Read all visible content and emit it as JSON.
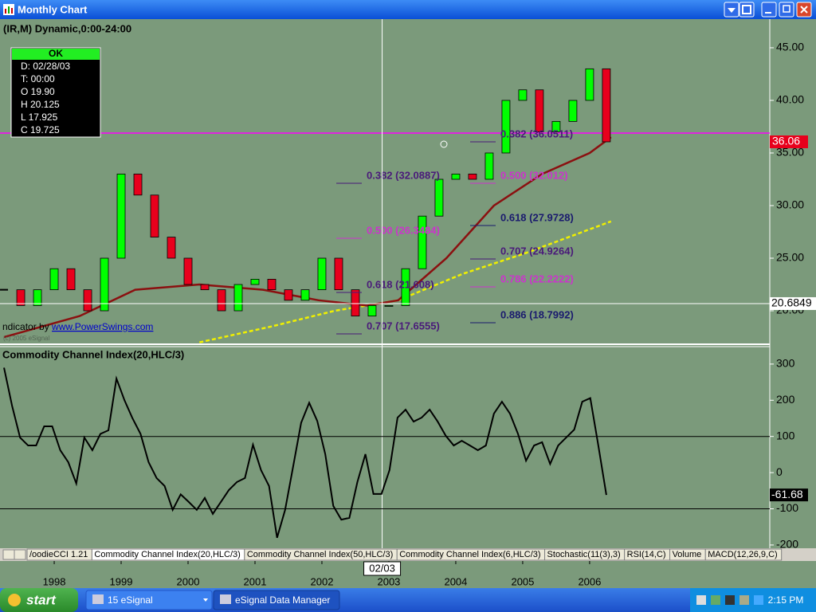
{
  "window": {
    "title": "Monthly Chart"
  },
  "symbol_line": "(IR,M) Dynamic,0:00-24:00",
  "info_box": {
    "status": "OK",
    "lines": [
      "D: 02/28/03",
      "T: 00:00",
      "O 19.90",
      "H 20.125",
      "L 17.925",
      "C 19.725"
    ]
  },
  "credit": {
    "prefix": "ndicator by ",
    "link": "www.PowerSwings.com",
    "watermark": "(c) 2005 eSignal"
  },
  "price_panel": {
    "xlim": [
      1997.19,
      2008.68
    ],
    "ylim": [
      16.82,
      47.42
    ],
    "yticks": [
      {
        "value": 45,
        "label": "45.00"
      },
      {
        "value": 40,
        "label": "40.00"
      },
      {
        "value": 35,
        "label": "35.00"
      },
      {
        "value": 30,
        "label": "30.00"
      },
      {
        "value": 25,
        "label": "25.00"
      },
      {
        "value": 20,
        "label": "20.00"
      }
    ],
    "x": [
      1997.25,
      1997.5,
      1997.75,
      1998,
      1998.25,
      1998.5,
      1998.75,
      1999,
      1999.25,
      1999.5,
      1999.75,
      2000,
      2000.25,
      2000.5,
      2000.75,
      2001,
      2001.25,
      2001.5,
      2001.75,
      2002,
      2002.25,
      2002.5,
      2002.75,
      2003,
      2003.25,
      2003.5,
      2003.75,
      2004,
      2004.25,
      2004.5,
      2004.75,
      2005,
      2005.25,
      2005.5,
      2005.75,
      2006,
      2006.25
    ],
    "closes": [
      22,
      20.5,
      22,
      24,
      22,
      20,
      25,
      33,
      31,
      27,
      25,
      22.5,
      22,
      20,
      22.5,
      23,
      22,
      21,
      22,
      25,
      22,
      19.5,
      20.5,
      20.5,
      24,
      29,
      32.5,
      33,
      32.5,
      35,
      40,
      41,
      37,
      38,
      40,
      43,
      36.06
    ],
    "up_color": "#00ff00",
    "down_color": "#e8001c",
    "moving_average": {
      "color": "#8b1010",
      "x": [
        1997.25,
        1998.38,
        1999.21,
        2000.17,
        2001.12,
        2001.95,
        2002.67,
        2003.14,
        2003.86,
        2004.57,
        2005.29,
        2006.0,
        2006.32
      ],
      "values": [
        17.5,
        19.5,
        22,
        22.5,
        22,
        21,
        20.5,
        21,
        25,
        30,
        33,
        35,
        36.5
      ]
    },
    "trend_line": {
      "color": "#f0f000",
      "x": [
        2000.17,
        2001.24,
        2002.19,
        2003.14,
        2004.1,
        2005.05,
        2006.32
      ],
      "values": [
        17,
        18.5,
        20,
        21,
        23.5,
        25.5,
        28.5
      ]
    },
    "level_line": {
      "value": 36.89,
      "color": "#ff00ff"
    },
    "crosshair": {
      "x": 2002.9,
      "price": 20.6849,
      "date_label": "02/03"
    },
    "fib_levels": [
      {
        "label": "0.382 (32.0887)",
        "color": "#4a1a7a"
      },
      {
        "label": "0.500 (26.3484)",
        "color": "#cc33cc"
      },
      {
        "label": "0.618 (21.608)",
        "color": "#4a1a7a"
      },
      {
        "label": "0.707 (17.6555)",
        "color": "#4a1a7a"
      },
      {
        "label": "0.382 (36.0511)",
        "color": "#4a1a7a"
      },
      {
        "label": "0.500 (32.012)",
        "color": "#cc33cc"
      },
      {
        "label": "0.618 (27.9728)",
        "color": "#1a1a6e"
      },
      {
        "label": "0.707 (24.9264)",
        "color": "#4a1a7a"
      },
      {
        "label": "0.786 (22.2222)",
        "color": "#cc33cc"
      },
      {
        "label": "0.886 (18.7992)",
        "color": "#1a1a6e"
      }
    ]
  },
  "cci_panel": {
    "title": "Commodity Channel Index(20,HLC/3)",
    "ylim": [
      -209,
      346
    ],
    "yticks": [
      300,
      200,
      100,
      0,
      -100,
      -200
    ],
    "guide_levels": [
      100,
      -100
    ],
    "color": "#000000",
    "x": [
      1997.25,
      1997.37,
      1997.49,
      1997.61,
      1997.73,
      1997.85,
      1997.97,
      1998.09,
      1998.21,
      1998.33,
      1998.45,
      1998.57,
      1998.69,
      1998.81,
      1998.93,
      1999.05,
      1999.17,
      1999.29,
      1999.41,
      1999.53,
      1999.65,
      1999.77,
      1999.89,
      2000.01,
      2000.13,
      2000.25,
      2000.37,
      2000.49,
      2000.61,
      2000.73,
      2000.85,
      2000.97,
      2001.09,
      2001.21,
      2001.33,
      2001.45,
      2001.57,
      2001.69,
      2001.81,
      2001.93,
      2002.05,
      2002.17,
      2002.29,
      2002.41,
      2002.53,
      2002.65,
      2002.77,
      2002.89,
      2003.01,
      2003.13,
      2003.25,
      2003.37,
      2003.49,
      2003.61,
      2003.73,
      2003.85,
      2003.97,
      2004.09,
      2004.21,
      2004.33,
      2004.45,
      2004.57,
      2004.69,
      2004.81,
      2004.93,
      2005.05,
      2005.17,
      2005.29,
      2005.41,
      2005.53,
      2005.65,
      2005.77,
      2005.89,
      2006.01,
      2006.13,
      2006.25
    ],
    "values": [
      290,
      185,
      97,
      75,
      75,
      128,
      128,
      62,
      29,
      -30,
      97,
      62,
      107,
      117,
      260,
      200,
      150,
      107,
      29,
      -15,
      -37,
      -103,
      -60,
      -81,
      -103,
      -70,
      -114,
      -81,
      -48,
      -26,
      -15,
      77,
      7,
      -37,
      -180,
      -103,
      17,
      138,
      193,
      143,
      51,
      -92,
      -130,
      -125,
      -26,
      51,
      -59,
      -59,
      7,
      152,
      174,
      141,
      152,
      174,
      141,
      102,
      75,
      88,
      75,
      62,
      75,
      163,
      196,
      163,
      107,
      33,
      75,
      84,
      24,
      75,
      97,
      119,
      196,
      206,
      75,
      -61.68
    ]
  },
  "tabs": [
    "/oodieCCI 1.21",
    "Commodity Channel Index(20,HLC/3)",
    "Commodity Channel Index(50,HLC/3)",
    "Commodity Channel Index(6,HLC/3)",
    "Stochastic(11(3),3)",
    "RSI(14,C)",
    "Volume",
    "MACD(12,26,9,C)"
  ],
  "xticks": [
    1998,
    1999,
    2000,
    2001,
    2002,
    2003,
    2004,
    2005,
    2006
  ],
  "taskbar": {
    "start": "start",
    "items": [
      "15 eSignal",
      "eSignal Data Manager"
    ],
    "clock": "2:15 PM"
  }
}
